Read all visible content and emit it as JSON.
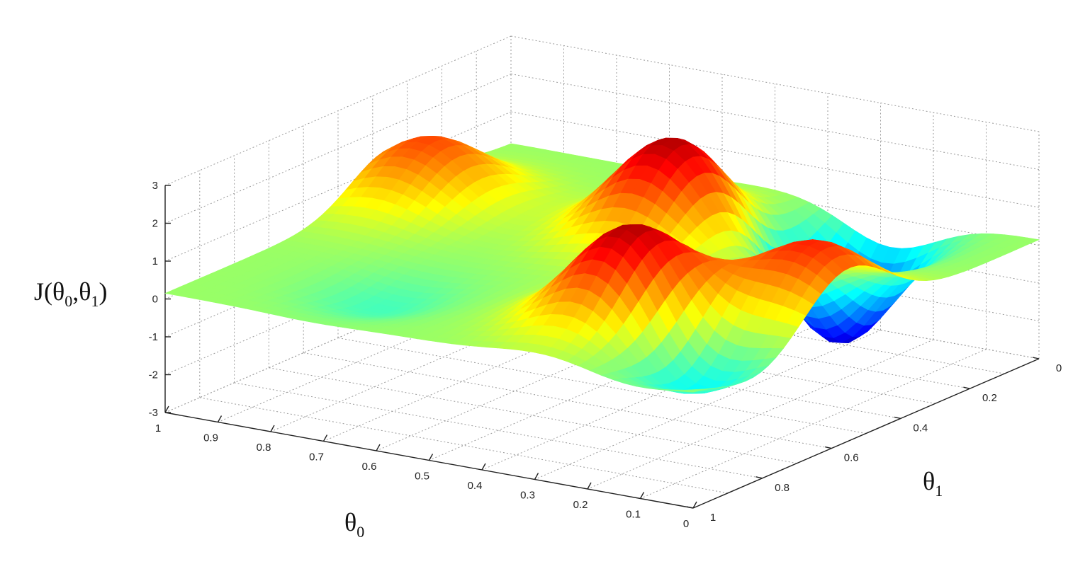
{
  "chart_data": {
    "type": "surface",
    "title": "",
    "zlabel": {
      "main": "J(θ",
      "sub0": "0",
      "mid": ",θ",
      "sub1": "1",
      "end": ")"
    },
    "xlabel": {
      "main": "θ",
      "sub": "0"
    },
    "ylabel": {
      "main": "θ",
      "sub": "1"
    },
    "x_axis": {
      "name": "theta0",
      "range": [
        0,
        1
      ],
      "ticks": [
        1,
        0.9,
        0.8,
        0.7,
        0.6,
        0.5,
        0.4,
        0.3,
        0.2,
        0.1,
        0
      ],
      "tick_labels": [
        "1",
        "0.9",
        "0.8",
        "0.7",
        "0.6",
        "0.5",
        "0.4",
        "0.3",
        "0.2",
        "0.1",
        "0"
      ]
    },
    "y_axis": {
      "name": "theta1",
      "range": [
        0,
        1
      ],
      "ticks": [
        0,
        0.2,
        0.4,
        0.6,
        0.8,
        1
      ],
      "tick_labels": [
        "0",
        "0.2",
        "0.4",
        "0.6",
        "0.8",
        "1"
      ]
    },
    "z_axis": {
      "name": "J",
      "range": [
        -3,
        3
      ],
      "ticks": [
        3,
        2,
        1,
        0,
        -1,
        -2,
        -3
      ],
      "tick_labels": [
        "3",
        "2",
        "1",
        "0",
        "-1",
        "-2",
        "-3"
      ]
    },
    "grid": true,
    "colormap": "jet",
    "surface_features": [
      {
        "kind": "peak",
        "theta0": 0.5,
        "theta1": 0.3,
        "J": 2.6
      },
      {
        "kind": "peak",
        "theta0": 0.28,
        "theta1": 0.75,
        "J": 2.7
      },
      {
        "kind": "peak",
        "theta0": 0.93,
        "theta1": 0.35,
        "J": 1.7
      },
      {
        "kind": "peak",
        "theta0": 0.07,
        "theta1": 0.55,
        "J": 1.9
      },
      {
        "kind": "valley",
        "theta0": 0.28,
        "theta1": 0.15,
        "J": -2.9
      },
      {
        "kind": "valley",
        "theta0": 0.12,
        "theta1": 0.82,
        "J": -1.3
      },
      {
        "kind": "valley",
        "theta0": 0.72,
        "theta1": 0.8,
        "J": -0.5
      }
    ]
  }
}
